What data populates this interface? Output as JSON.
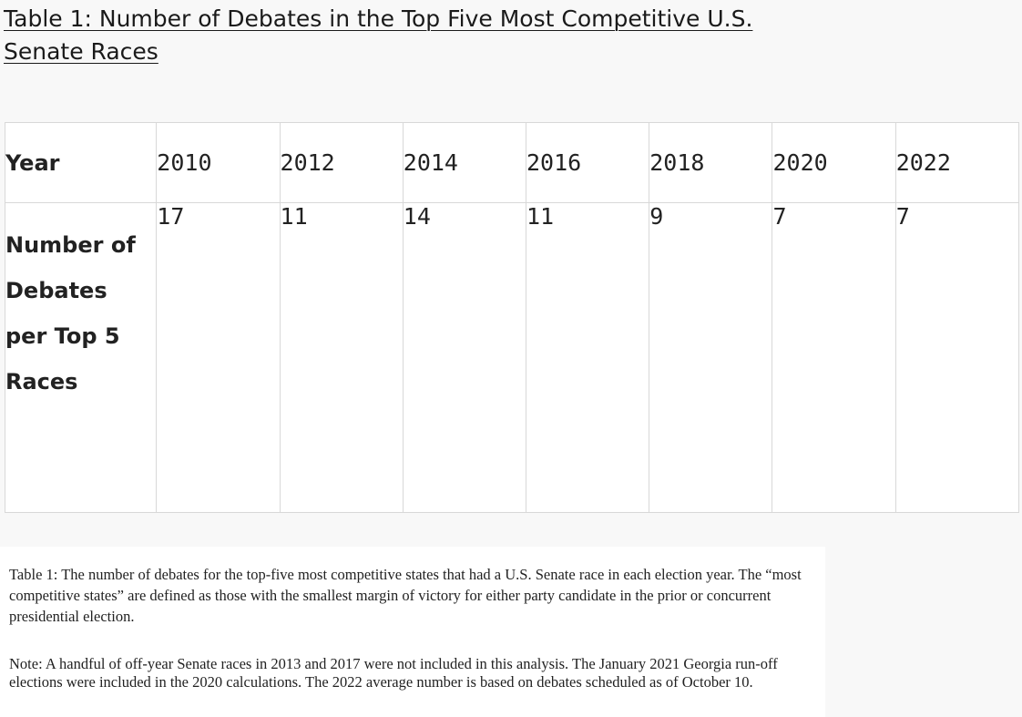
{
  "title": "Table 1: Number of Debates in the Top Five Most Competitive U.S. Senate Races",
  "table": {
    "row_year_label": "Year",
    "row_count_label": "Number of Debates per Top 5 Races",
    "years": [
      "2010",
      "2012",
      "2014",
      "2016",
      "2018",
      "2020",
      "2022"
    ],
    "counts": [
      "17",
      "11",
      "14",
      "11",
      "9",
      "7",
      "7"
    ]
  },
  "captions": {
    "description": "Table 1: The number of debates for the top-five most competitive states that had a U.S. Senate race in each election year. The “most competitive states” are defined as those with the smallest margin of victory for either party candidate in the prior or concurrent presidential election.",
    "note": "Note: A handful of off-year Senate races in 2013 and 2017 were not included in this analysis. The January 2021 Georgia run-off elections were included in the 2020 calculations. The 2022 average number is based on debates scheduled as of October 10."
  }
}
